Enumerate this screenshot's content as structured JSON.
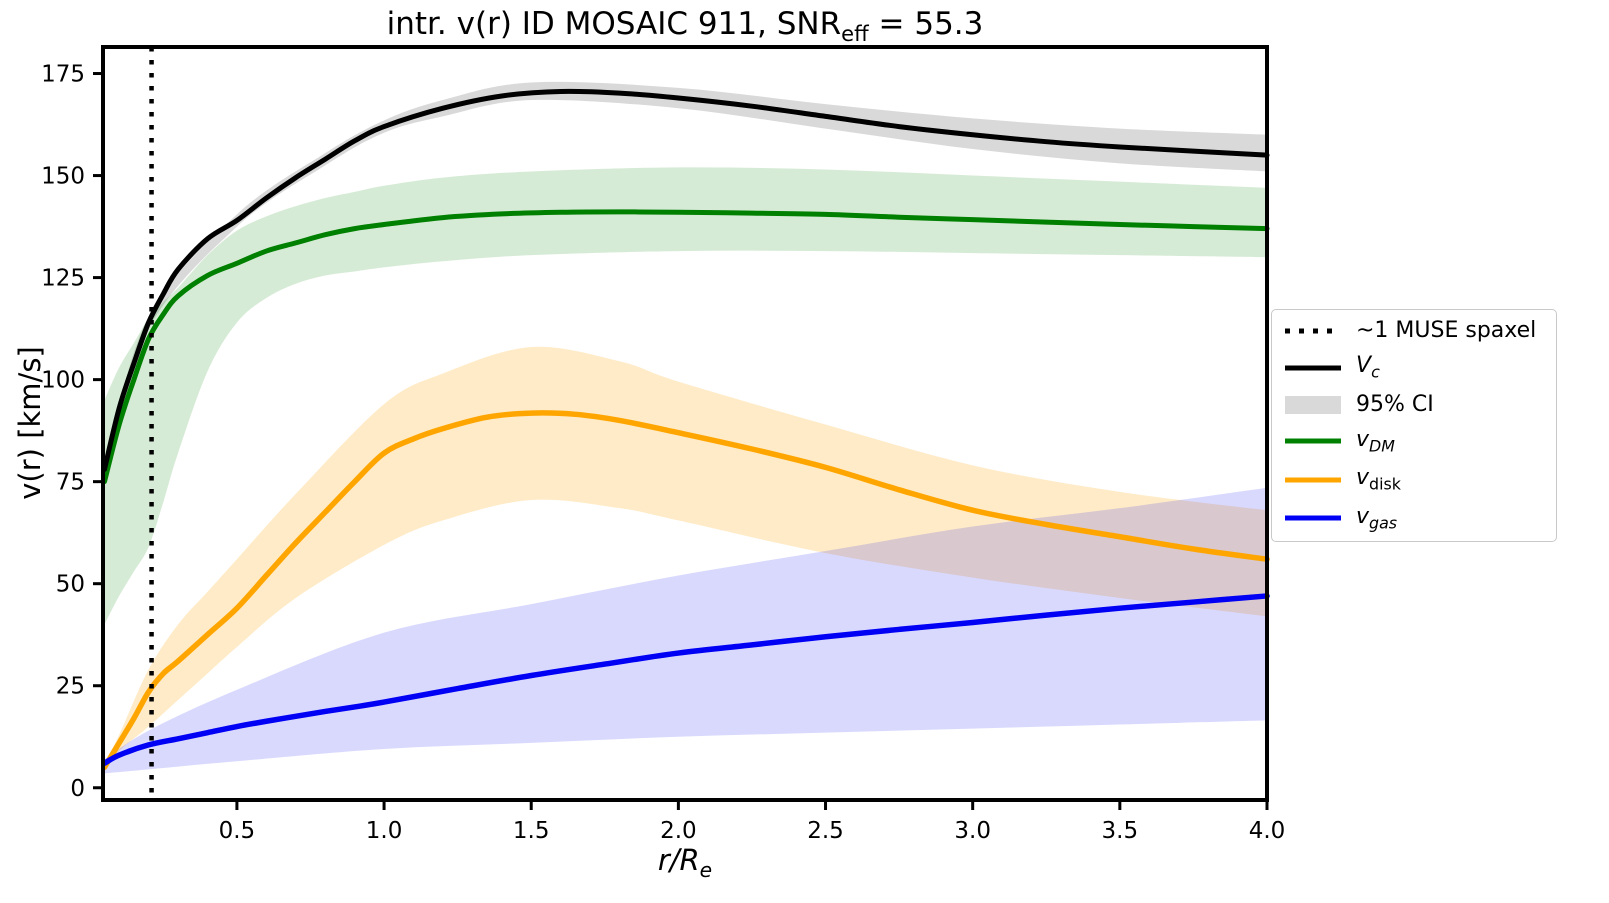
{
  "title": {
    "prefix": "intr. v(r) ID MOSAIC 911, SNR",
    "sub": "eff",
    "suffix": " = 55.3"
  },
  "axes": {
    "ylabel": "v(r) [km/s]",
    "xlabel_main": "r/R",
    "xlabel_sub": "e",
    "x_tick_labels": [
      "0.5",
      "1.0",
      "1.5",
      "2.0",
      "2.5",
      "3.0",
      "3.5",
      "4.0"
    ],
    "x_ticks": [
      0.5,
      1.0,
      1.5,
      2.0,
      2.5,
      3.0,
      3.5,
      4.0
    ],
    "y_tick_labels": [
      "0",
      "25",
      "50",
      "75",
      "100",
      "125",
      "150",
      "175"
    ],
    "y_ticks": [
      0,
      25,
      50,
      75,
      100,
      125,
      150,
      175
    ]
  },
  "legend": {
    "items": [
      {
        "name": "muse-spaxel",
        "swatch": "dotted",
        "color": "#000000",
        "parts": [
          {
            "t": "~1 MUSE spaxel"
          }
        ]
      },
      {
        "name": "vc",
        "swatch": "line",
        "color": "#000000",
        "parts": [
          {
            "t": "V",
            "i": true
          },
          {
            "t": "c",
            "i": true,
            "sub": true
          }
        ]
      },
      {
        "name": "ci95",
        "swatch": "patch",
        "color": "#aaaaaa",
        "opacity": 0.45,
        "parts": [
          {
            "t": "95% CI"
          }
        ]
      },
      {
        "name": "vdm",
        "swatch": "line",
        "color": "#008000",
        "parts": [
          {
            "t": "v",
            "i": true
          },
          {
            "t": "DM",
            "i": true,
            "sub": true
          }
        ]
      },
      {
        "name": "vdisk",
        "swatch": "line",
        "color": "#ffa500",
        "parts": [
          {
            "t": "v",
            "i": true
          },
          {
            "t": "disk",
            "sub": true
          }
        ]
      },
      {
        "name": "vgas",
        "swatch": "line",
        "color": "#0000f5",
        "parts": [
          {
            "t": "v",
            "i": true
          },
          {
            "t": "gas",
            "i": true,
            "sub": true
          }
        ]
      }
    ]
  },
  "chart_data": {
    "type": "line",
    "xlim": [
      0.045,
      4.0
    ],
    "ylim": [
      -3,
      181.5
    ],
    "grid": false,
    "legend_position": "outside-right",
    "vline": {
      "x": 0.21,
      "style": "dotted",
      "color": "#000000",
      "label": "~1 MUSE spaxel"
    },
    "bands": [
      {
        "name": "vc-ci-band",
        "color": "#aaaaaa",
        "opacity": 0.45,
        "x": [
          0.05,
          0.2,
          0.5,
          0.8,
          1.0,
          1.2,
          1.5,
          2.0,
          2.5,
          3.0,
          3.5,
          4.0
        ],
        "upper": [
          79,
          115.5,
          140.5,
          155.5,
          163.5,
          168.5,
          172.8,
          171.5,
          167.5,
          164,
          161.5,
          160
        ],
        "lower": [
          77,
          112.5,
          137.5,
          152.5,
          160.5,
          164.5,
          168.5,
          166.5,
          161.5,
          156.5,
          153,
          151
        ]
      },
      {
        "name": "vdm-ci-band",
        "color": "#008000",
        "opacity": 0.16,
        "x": [
          0.05,
          0.1,
          0.15,
          0.2,
          0.25,
          0.3,
          0.4,
          0.5,
          0.6,
          0.7,
          0.8,
          0.9,
          1.0,
          1.2,
          1.5,
          2.0,
          2.5,
          3.0,
          3.5,
          4.0
        ],
        "upper": [
          95,
          103,
          109,
          115,
          119,
          122.5,
          130.5,
          136.5,
          140,
          142.5,
          144.5,
          146,
          147.5,
          149.5,
          151,
          152,
          151.5,
          150,
          148.5,
          147
        ],
        "lower": [
          40,
          47,
          53,
          59,
          70,
          82,
          102,
          114,
          120,
          123.5,
          125.5,
          126.5,
          127.5,
          129,
          130.5,
          131.5,
          131.5,
          131,
          130.5,
          130
        ]
      },
      {
        "name": "vdisk-ci-band",
        "color": "#ffa500",
        "opacity": 0.22,
        "x": [
          0.05,
          0.1,
          0.2,
          0.3,
          0.4,
          0.5,
          0.7,
          1.0,
          1.2,
          1.5,
          1.8,
          2.0,
          2.5,
          3.0,
          3.5,
          4.0
        ],
        "upper": [
          6,
          13,
          29,
          40,
          48,
          56,
          72,
          94,
          101.5,
          108,
          104.5,
          99.5,
          89,
          79,
          72.5,
          68
        ],
        "lower": [
          4,
          9,
          15,
          21.5,
          28,
          34.5,
          46.5,
          59.5,
          65.5,
          70.5,
          68.5,
          65.5,
          57.5,
          51.5,
          46.5,
          42
        ]
      },
      {
        "name": "vgas-ci-band",
        "color": "#0000f5",
        "opacity": 0.15,
        "x": [
          0.05,
          0.2,
          0.5,
          1.0,
          1.5,
          2.0,
          2.5,
          3.0,
          3.5,
          4.0
        ],
        "upper": [
          7,
          14,
          24,
          38,
          45,
          52,
          58,
          64,
          68.5,
          73.5
        ],
        "lower": [
          3.5,
          4.5,
          6.5,
          9.5,
          11,
          12.5,
          13.5,
          14.5,
          15.5,
          16.5
        ]
      }
    ],
    "series": [
      {
        "name": "vdm-curve",
        "label": "v_DM",
        "color": "#008000",
        "width": 5,
        "x": [
          0.05,
          0.1,
          0.15,
          0.2,
          0.25,
          0.3,
          0.4,
          0.5,
          0.6,
          0.7,
          0.8,
          0.9,
          1.0,
          1.2,
          1.4,
          1.6,
          1.8,
          2.0,
          2.25,
          2.5,
          2.75,
          3.0,
          3.25,
          3.5,
          3.75,
          4.0
        ],
        "y": [
          75,
          89,
          100,
          110,
          116,
          120.5,
          125.5,
          128.5,
          131.5,
          133.5,
          135.5,
          137,
          138,
          139.7,
          140.6,
          141,
          141.1,
          141,
          140.8,
          140.5,
          139.8,
          139.2,
          138.6,
          138,
          137.5,
          137
        ]
      },
      {
        "name": "vdisk-curve",
        "label": "v_disk",
        "color": "#ffa500",
        "width": 5.5,
        "x": [
          0.05,
          0.1,
          0.15,
          0.2,
          0.25,
          0.3,
          0.4,
          0.5,
          0.6,
          0.7,
          0.8,
          0.9,
          1.0,
          1.1,
          1.2,
          1.35,
          1.5,
          1.65,
          1.8,
          2.0,
          2.25,
          2.5,
          2.75,
          3.0,
          3.25,
          3.5,
          3.75,
          4.0
        ],
        "y": [
          5,
          11,
          17,
          23.5,
          28,
          31,
          37.5,
          44,
          52,
          60,
          67.5,
          75,
          82,
          85.5,
          88,
          90.8,
          91.8,
          91.5,
          90,
          87,
          83,
          78.5,
          73,
          68,
          64.5,
          61.5,
          58.5,
          56
        ]
      },
      {
        "name": "vgas-curve",
        "label": "v_gas",
        "color": "#0000f5",
        "width": 5.5,
        "x": [
          0.05,
          0.1,
          0.2,
          0.3,
          0.4,
          0.5,
          0.6,
          0.7,
          0.8,
          0.9,
          1.0,
          1.25,
          1.5,
          1.75,
          2.0,
          2.25,
          2.5,
          2.75,
          3.0,
          3.25,
          3.5,
          3.75,
          4.0
        ],
        "y": [
          6,
          8,
          10.5,
          12,
          13.5,
          15,
          16.3,
          17.5,
          18.7,
          19.8,
          21,
          24.3,
          27.5,
          30.3,
          33,
          35,
          37,
          38.8,
          40.5,
          42.3,
          44,
          45.5,
          47
        ]
      },
      {
        "name": "vc-curve",
        "label": "V_c",
        "color": "#000000",
        "width": 5,
        "x": [
          0.05,
          0.1,
          0.15,
          0.2,
          0.25,
          0.3,
          0.4,
          0.5,
          0.6,
          0.7,
          0.8,
          0.9,
          1.0,
          1.2,
          1.4,
          1.6,
          1.8,
          2.0,
          2.25,
          2.5,
          2.75,
          3.0,
          3.25,
          3.5,
          3.75,
          4.0
        ],
        "y": [
          78,
          93,
          104,
          114,
          121,
          127,
          134.5,
          139,
          144.5,
          149.5,
          154,
          158.5,
          162,
          166.5,
          169.5,
          170.6,
          170.2,
          169,
          167,
          164.5,
          162,
          160,
          158.3,
          157,
          156,
          155
        ]
      }
    ]
  }
}
